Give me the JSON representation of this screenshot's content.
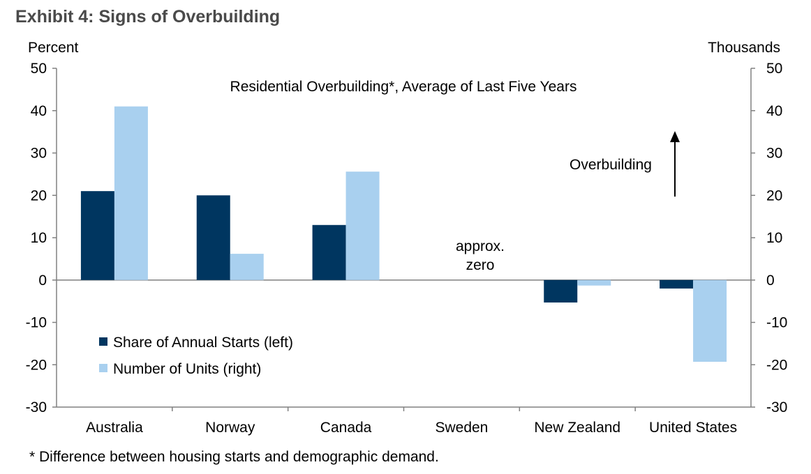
{
  "exhibit_title": "Exhibit 4: Signs of Overbuilding",
  "footnote": "* Difference between housing starts and demographic demand.",
  "colors": {
    "series_left": "#003660",
    "series_right": "#a9d0ef",
    "axis": "#808080"
  },
  "chart_data": {
    "type": "bar",
    "title": "Residential Overbuilding*, Average of Last Five Years",
    "ylabel_left": "Percent",
    "ylabel_right": "Thousands",
    "ylim_left": [
      -30,
      50
    ],
    "ylim_right": [
      -30,
      50
    ],
    "yticks": [
      "50",
      "40",
      "30",
      "20",
      "10",
      "0",
      "-10",
      "-20",
      "-30"
    ],
    "grid": false,
    "legend_position": "lower-left",
    "categories": [
      "Australia",
      "Norway",
      "Canada",
      "Sweden",
      "New Zealand",
      "United States"
    ],
    "series": [
      {
        "name": "Share of Annual Starts (left)",
        "axis": "left",
        "values": [
          21,
          20,
          13,
          0,
          -5.3,
          -2
        ]
      },
      {
        "name": "Number of Units (right)",
        "axis": "right",
        "values": [
          41,
          6.2,
          25.6,
          0,
          -1.3,
          -19.3
        ]
      }
    ],
    "annotations": {
      "sweden_line1": "approx.",
      "sweden_line2": "zero",
      "arrow_label": "Overbuilding"
    }
  }
}
